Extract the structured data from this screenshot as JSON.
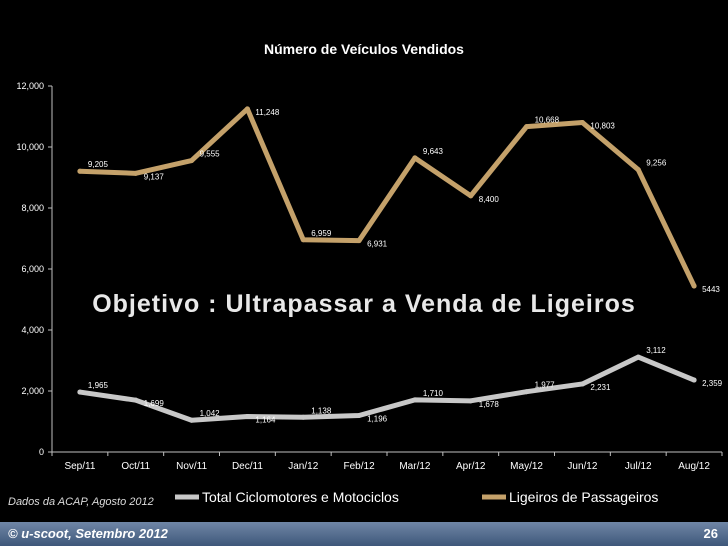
{
  "chart_data": {
    "type": "line",
    "title": "Número de Veículos Vendidos",
    "categories": [
      "Sep/11",
      "Oct/11",
      "Nov/11",
      "Dec/11",
      "Jan/12",
      "Feb/12",
      "Mar/12",
      "Apr/12",
      "May/12",
      "Jun/12",
      "Jul/12",
      "Aug/12"
    ],
    "ylim": [
      0,
      12000
    ],
    "yticks": [
      "0",
      "2,000",
      "4,000",
      "6,000",
      "8,000",
      "10,000",
      "12,000"
    ],
    "grid": false,
    "legend_position": "bottom",
    "series": [
      {
        "name": "Total Ciclomotores e Motociclos",
        "color": "#c8c8c8",
        "values": [
          1965,
          1699,
          1042,
          1164,
          1138,
          1196,
          1710,
          1678,
          1977,
          2231,
          3112,
          2359
        ],
        "labels": [
          "1,965",
          "1,699",
          "1,042",
          "1,164",
          "1,138",
          "1,196",
          "1,710",
          "1,678",
          "1,977",
          "2,231",
          "3,112",
          "2,359"
        ]
      },
      {
        "name": "Ligeiros de Passageiros",
        "color": "#c4a16a",
        "values": [
          9205,
          9137,
          9555,
          11248,
          6959,
          6931,
          9643,
          8400,
          10668,
          10803,
          9256,
          5443
        ],
        "labels": [
          "9,205",
          "9,137",
          "9,555",
          "11,248",
          "6,959",
          "6,931",
          "9,643",
          "8,400",
          "10,668",
          "10,803",
          "9,256",
          "5443"
        ]
      }
    ]
  },
  "headline": "Objetivo : Ultrapassar a Venda de Ligeiros",
  "source_note": "Dados da ACAP, Agosto 2012",
  "footer": {
    "text": "© u-scoot, Setembro 2012",
    "page": "26"
  }
}
